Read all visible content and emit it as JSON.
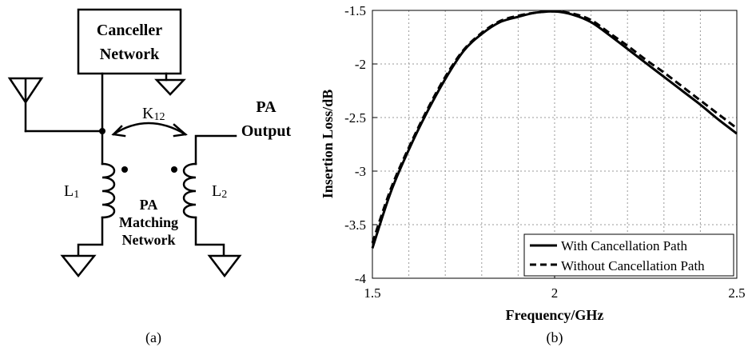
{
  "panel_a": {
    "caption": "(a)",
    "canceller_line1": "Canceller",
    "canceller_line2": "Network",
    "coupling_label": "K",
    "coupling_sub": "12",
    "pa_output_line1": "PA",
    "pa_output_line2": "Output",
    "l1_label": "L",
    "l1_sub": "1",
    "l2_label": "L",
    "l2_sub": "2",
    "matching_line1": "PA",
    "matching_line2": "Matching",
    "matching_line3": "Network"
  },
  "panel_b": {
    "caption": "(b)"
  },
  "chart_data": {
    "type": "line",
    "title": "",
    "xlabel": "Frequency/GHz",
    "ylabel": "Insertion Loss/dB",
    "xlim": [
      1.5,
      2.5
    ],
    "ylim": [
      -4,
      -1.5
    ],
    "x_ticks": [
      1.5,
      2,
      2.5
    ],
    "x_tick_labels": [
      "1.5",
      "2",
      "2.5"
    ],
    "y_ticks": [
      -4,
      -3.5,
      -3,
      -2.5,
      -2,
      -1.5
    ],
    "y_tick_labels": [
      "-4",
      "-3.5",
      "-3",
      "-2.5",
      "-2",
      "-1.5"
    ],
    "grid": true,
    "legend_position": "bottom-right",
    "series": [
      {
        "name": "With Cancellation Path",
        "style": "solid",
        "color": "#000000",
        "x": [
          1.5,
          1.55,
          1.6,
          1.65,
          1.7,
          1.75,
          1.8,
          1.85,
          1.9,
          1.95,
          2.0,
          2.05,
          2.1,
          2.15,
          2.2,
          2.25,
          2.3,
          2.35,
          2.4,
          2.45,
          2.5
        ],
        "y": [
          -3.72,
          -3.2,
          -2.8,
          -2.45,
          -2.14,
          -1.88,
          -1.72,
          -1.61,
          -1.56,
          -1.52,
          -1.51,
          -1.54,
          -1.61,
          -1.73,
          -1.86,
          -1.99,
          -2.12,
          -2.25,
          -2.38,
          -2.52,
          -2.65
        ]
      },
      {
        "name": "Without Cancellation Path",
        "style": "dashed",
        "color": "#000000",
        "x": [
          1.5,
          1.55,
          1.6,
          1.65,
          1.7,
          1.75,
          1.8,
          1.85,
          1.9,
          1.95,
          2.0,
          2.05,
          2.1,
          2.15,
          2.2,
          2.25,
          2.3,
          2.35,
          2.4,
          2.45,
          2.5
        ],
        "y": [
          -3.67,
          -3.17,
          -2.78,
          -2.43,
          -2.12,
          -1.87,
          -1.71,
          -1.6,
          -1.55,
          -1.52,
          -1.51,
          -1.53,
          -1.59,
          -1.71,
          -1.83,
          -1.96,
          -2.08,
          -2.21,
          -2.34,
          -2.47,
          -2.6
        ]
      }
    ]
  }
}
